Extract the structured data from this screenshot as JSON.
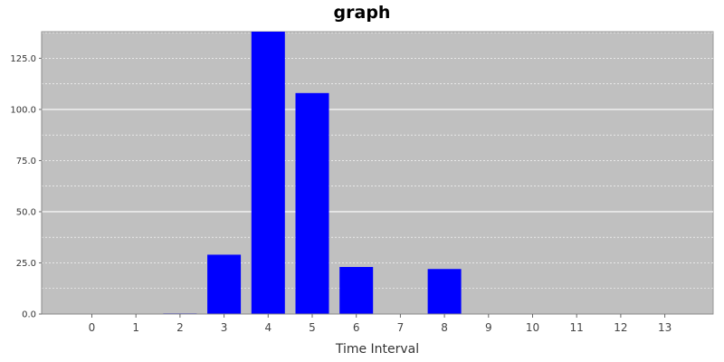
{
  "chart_data": {
    "type": "bar",
    "title": "graph",
    "xlabel": "Time Interval",
    "ylabel": "",
    "categories": [
      "0",
      "1",
      "2",
      "3",
      "4",
      "5",
      "6",
      "7",
      "8",
      "9",
      "10",
      "11",
      "12",
      "13"
    ],
    "values": [
      0,
      0,
      0.3,
      29,
      139,
      108,
      23,
      0,
      22,
      0,
      0,
      0,
      0,
      0
    ],
    "ylim": [
      0,
      138
    ],
    "yticks": [
      "0.0",
      "25.0",
      "50.0",
      "75.0",
      "100.0",
      "125.0"
    ],
    "grid": true,
    "legend": "none",
    "colors": {
      "bar": "#0000ff",
      "plot_background": "#c0c0c0",
      "gridline": "#ffffff"
    }
  }
}
